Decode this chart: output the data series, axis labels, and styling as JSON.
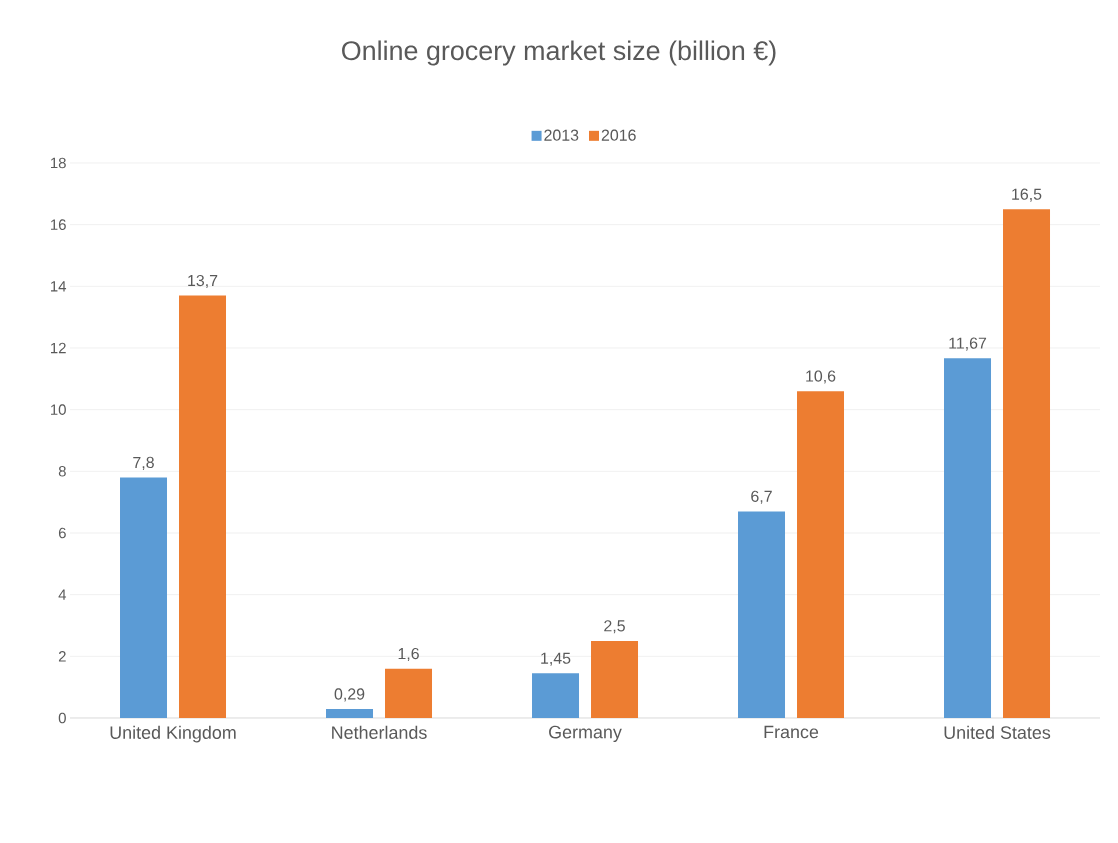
{
  "chart_data": {
    "type": "bar",
    "title": "Online grocery market size (billion €)",
    "categories": [
      "United Kingdom",
      "Netherlands",
      "Germany",
      "France",
      "United States"
    ],
    "series": [
      {
        "name": "2013",
        "color": "#5b9bd5",
        "values": [
          7.8,
          0.29,
          1.45,
          6.7,
          11.67
        ],
        "value_labels": [
          "7,8",
          "0,29",
          "1,45",
          "6,7",
          "11,67"
        ]
      },
      {
        "name": "2016",
        "color": "#ed7d31",
        "values": [
          13.7,
          1.6,
          2.5,
          10.6,
          16.5
        ],
        "value_labels": [
          "13,7",
          "1,6",
          "2,5",
          "10,6",
          "16,5"
        ]
      }
    ],
    "ylim": [
      0,
      18
    ],
    "yticks": [
      0,
      2,
      4,
      6,
      8,
      10,
      12,
      14,
      16,
      18
    ],
    "grid": "y",
    "legend": "top"
  }
}
